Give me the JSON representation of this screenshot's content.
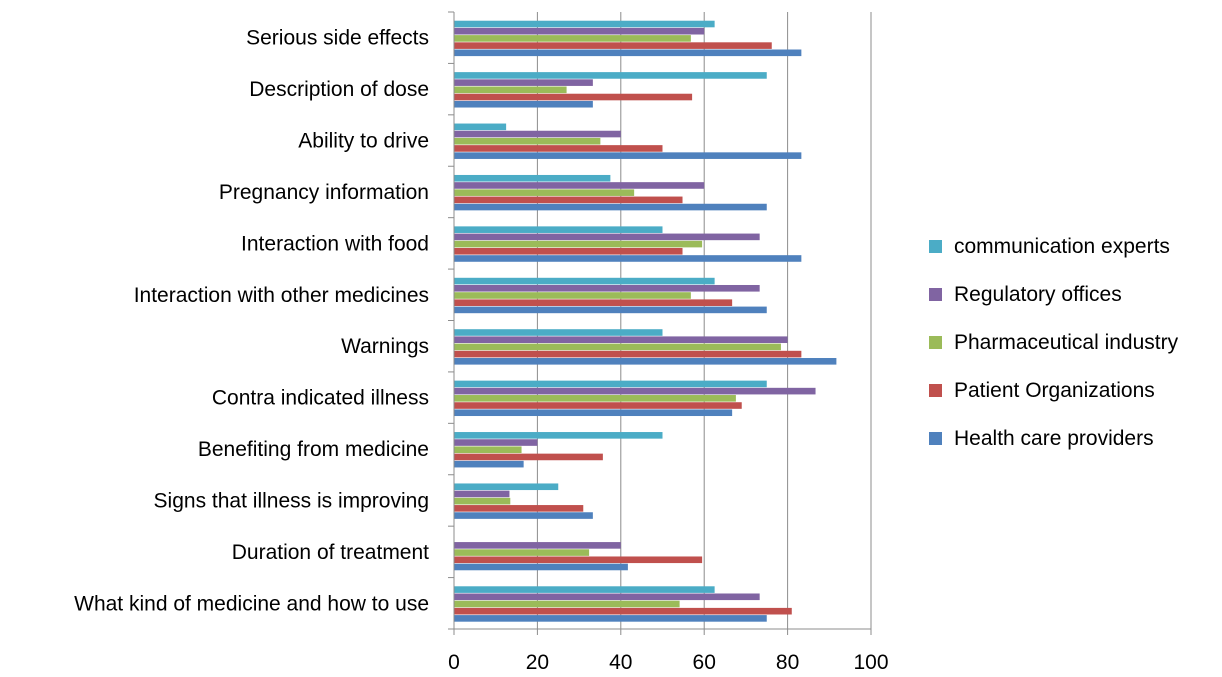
{
  "chart_data": {
    "type": "bar",
    "orientation": "horizontal",
    "categories": [
      "Serious side effects",
      "Description of dose",
      "Ability to drive",
      "Pregnancy information",
      "Interaction with food",
      "Interaction with other medicines",
      "Warnings",
      "Contra indicated illness",
      "Benefiting from medicine",
      "Signs that  illness is improving",
      "Duration of treatment",
      "What kind of medicine and how to use"
    ],
    "series": [
      {
        "name": "communication experts",
        "color": "#4BACC6",
        "values": [
          62.5,
          75,
          12.5,
          37.5,
          50,
          62.5,
          50,
          75,
          50,
          25,
          0,
          62.5
        ]
      },
      {
        "name": "Regulatory offices",
        "color": "#8064A2",
        "values": [
          60,
          33.3,
          40,
          60,
          73.3,
          73.3,
          80,
          86.7,
          20,
          13.3,
          40,
          73.3
        ]
      },
      {
        "name": "Pharmaceutical industry",
        "color": "#9BBB59",
        "values": [
          56.8,
          27,
          35.1,
          43.2,
          59.5,
          56.8,
          78.4,
          67.6,
          16.2,
          13.5,
          32.4,
          54.1
        ]
      },
      {
        "name": "Patient Organizations",
        "color": "#C0504D",
        "values": [
          76.2,
          57.1,
          50,
          54.8,
          54.8,
          66.7,
          83.3,
          69,
          35.7,
          31,
          59.5,
          81
        ]
      },
      {
        "name": "Health care providers",
        "color": "#4F81BD",
        "values": [
          83.3,
          33.3,
          83.3,
          75,
          83.3,
          75,
          91.7,
          66.7,
          16.7,
          33.3,
          41.7,
          75
        ]
      }
    ],
    "xlim": [
      0,
      100
    ],
    "xticks": [
      "0",
      "20",
      "40",
      "60",
      "80",
      "100"
    ],
    "grid": true,
    "legend_position": "right",
    "title": "",
    "xlabel": "",
    "ylabel": ""
  }
}
